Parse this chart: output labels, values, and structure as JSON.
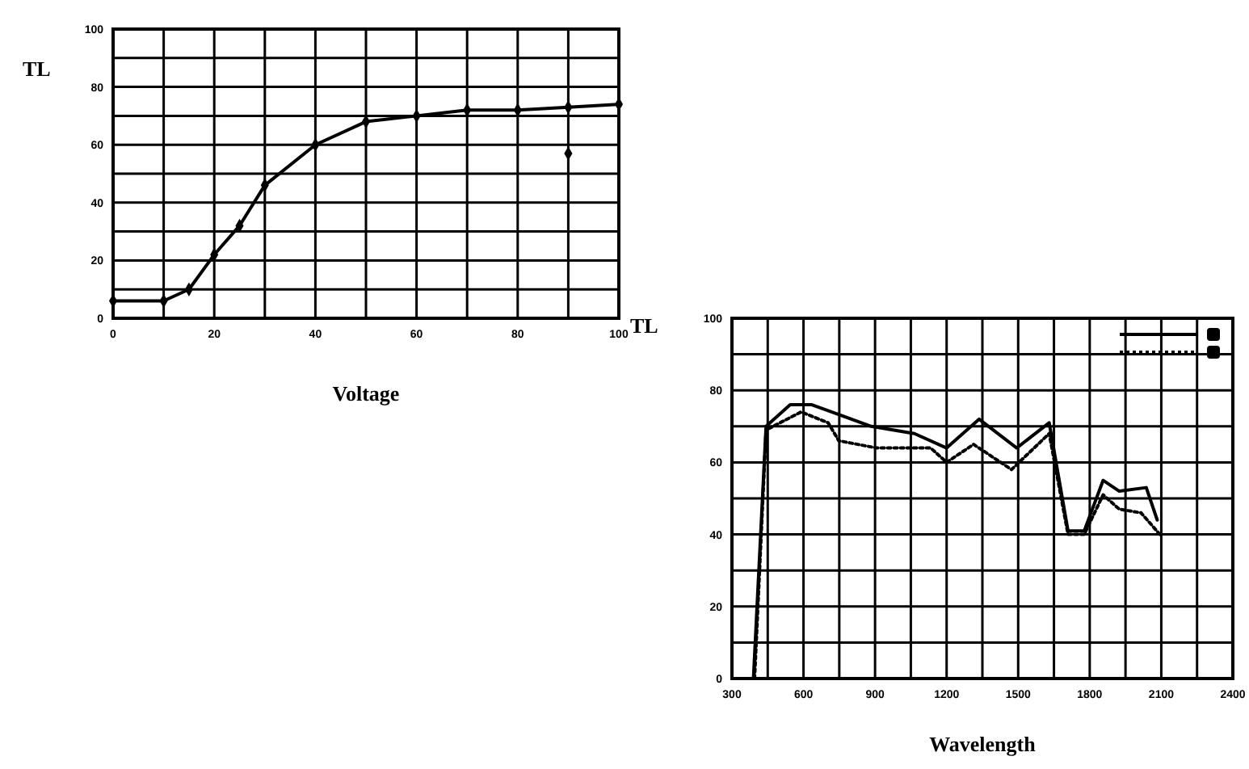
{
  "chart_data": [
    {
      "type": "line",
      "xlabel": "Voltage",
      "ylabel": "TL",
      "xlim": [
        0,
        100
      ],
      "ylim": [
        0,
        100
      ],
      "xticks": [
        0,
        {
          "value": 10,
          "label": null
        },
        20,
        {
          "value": 30,
          "label": null
        },
        40,
        {
          "value": 50,
          "label": null
        },
        60,
        {
          "value": 70,
          "label": null
        },
        80,
        {
          "value": 90,
          "label": null
        },
        100
      ],
      "yticks": [
        0,
        {
          "value": 10,
          "label": null
        },
        20,
        {
          "value": 30,
          "label": null
        },
        40,
        {
          "value": 50,
          "label": null
        },
        60,
        {
          "value": 70,
          "label": null
        },
        80,
        {
          "value": 90,
          "label": null
        },
        100
      ],
      "grid": true,
      "marker": "diamond",
      "line_style": "solid",
      "series": [
        {
          "color": "#000000",
          "x": [
            0,
            10,
            15,
            20,
            25,
            30,
            40,
            50,
            60,
            70,
            80,
            90,
            100
          ],
          "values": [
            6,
            6,
            10,
            22,
            32,
            46,
            60,
            68,
            70,
            72,
            72,
            73,
            74
          ]
        },
        {
          "type": "scatter",
          "color": "#000000",
          "x": [
            90
          ],
          "values": [
            57
          ]
        }
      ]
    },
    {
      "type": "line",
      "xlabel": "Wavelength",
      "ylabel": "TL",
      "xlim": [
        300,
        2400
      ],
      "ylim": [
        0,
        100
      ],
      "xticks": [
        300,
        {
          "value": 450,
          "label": null
        },
        600,
        {
          "value": 750,
          "label": null
        },
        900,
        {
          "value": 1050,
          "label": null
        },
        1200,
        {
          "value": 1350,
          "label": null
        },
        1500,
        {
          "value": 1650,
          "label": null
        },
        1800,
        {
          "value": 1950,
          "label": null
        },
        2100,
        {
          "value": 2250,
          "label": null
        },
        2400
      ],
      "yticks": [
        0,
        {
          "value": 10,
          "label": null
        },
        20,
        {
          "value": 30,
          "label": null
        },
        40,
        {
          "value": 50,
          "label": null
        },
        60,
        {
          "value": 70,
          "label": null
        },
        80,
        {
          "value": 90,
          "label": null
        },
        100
      ],
      "grid": true,
      "marker": "none",
      "series": [
        {
          "color": "#000000",
          "line_style": "solid",
          "x": [
            390,
            443,
            544,
            635,
            884,
            1065,
            1200,
            1336,
            1494,
            1630,
            1709,
            1777,
            1856,
            1924,
            2037,
            2083
          ],
          "values": [
            0,
            70,
            76,
            76,
            70,
            68,
            64,
            72,
            64,
            71,
            41,
            41,
            55,
            52,
            53,
            44
          ]
        },
        {
          "color": "#000000",
          "line_style": "dotted",
          "x": [
            395,
            443,
            590,
            703,
            748,
            906,
            1133,
            1200,
            1313,
            1472,
            1630,
            1709,
            1777,
            1856,
            1924,
            2015,
            2094
          ],
          "values": [
            0,
            69,
            74,
            71,
            66,
            64,
            64,
            60,
            65,
            58,
            68,
            40,
            40,
            51,
            47,
            46,
            40
          ]
        }
      ]
    }
  ]
}
